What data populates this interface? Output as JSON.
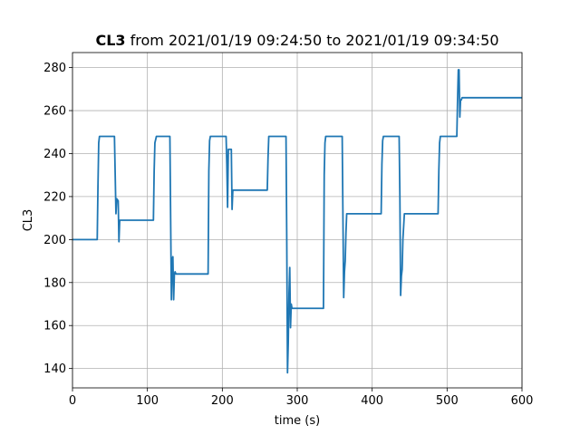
{
  "chart_data": {
    "type": "line",
    "title_bold": "CL3",
    "title_rest": " from 2021/01/19 09:24:50 to 2021/01/19 09:34:50",
    "xlabel": "time (s)",
    "ylabel": "CL3",
    "xlim": [
      0,
      600
    ],
    "ylim": [
      131,
      287
    ],
    "xticks": [
      0,
      100,
      200,
      300,
      400,
      500,
      600
    ],
    "yticks": [
      140,
      160,
      180,
      200,
      220,
      240,
      260,
      280
    ],
    "grid": true,
    "colors": {
      "series": "#1f77b4"
    },
    "series": [
      {
        "x": [
          0,
          33,
          34,
          35,
          36,
          56,
          57,
          58,
          59,
          61,
          62,
          63,
          108,
          109,
          110,
          112,
          130,
          131,
          132,
          133,
          134,
          135,
          136,
          137,
          138,
          181,
          182,
          183,
          184,
          205,
          206,
          207,
          208,
          212,
          213,
          214,
          215,
          260,
          261,
          262,
          263,
          285,
          286,
          287,
          288,
          289,
          290,
          291,
          292,
          293,
          294,
          335,
          336,
          337,
          338,
          360,
          361,
          362,
          363,
          364,
          365,
          366,
          367,
          368,
          412,
          413,
          414,
          415,
          436,
          437,
          438,
          439,
          440,
          441,
          442,
          443,
          444,
          445,
          446,
          488,
          489,
          490,
          491,
          513,
          514,
          515,
          516,
          517,
          518,
          519,
          520,
          600
        ],
        "y": [
          200,
          200,
          225,
          245,
          248,
          248,
          230,
          212,
          219,
          218,
          199,
          209,
          209,
          232,
          245,
          248,
          248,
          210,
          172,
          191,
          192,
          172,
          184,
          185,
          184,
          184,
          232,
          246,
          248,
          248,
          235,
          215,
          242,
          242,
          214,
          223,
          223,
          223,
          238,
          248,
          248,
          248,
          200,
          138,
          152,
          175,
          187,
          159,
          170,
          168,
          168,
          168,
          230,
          245,
          248,
          248,
          210,
          173,
          185,
          190,
          203,
          212,
          212,
          212,
          212,
          235,
          246,
          248,
          248,
          220,
          174,
          183,
          186,
          200,
          206,
          212,
          212,
          212,
          212,
          212,
          232,
          245,
          248,
          248,
          265,
          279,
          279,
          257,
          265,
          265,
          266,
          266
        ]
      }
    ]
  }
}
